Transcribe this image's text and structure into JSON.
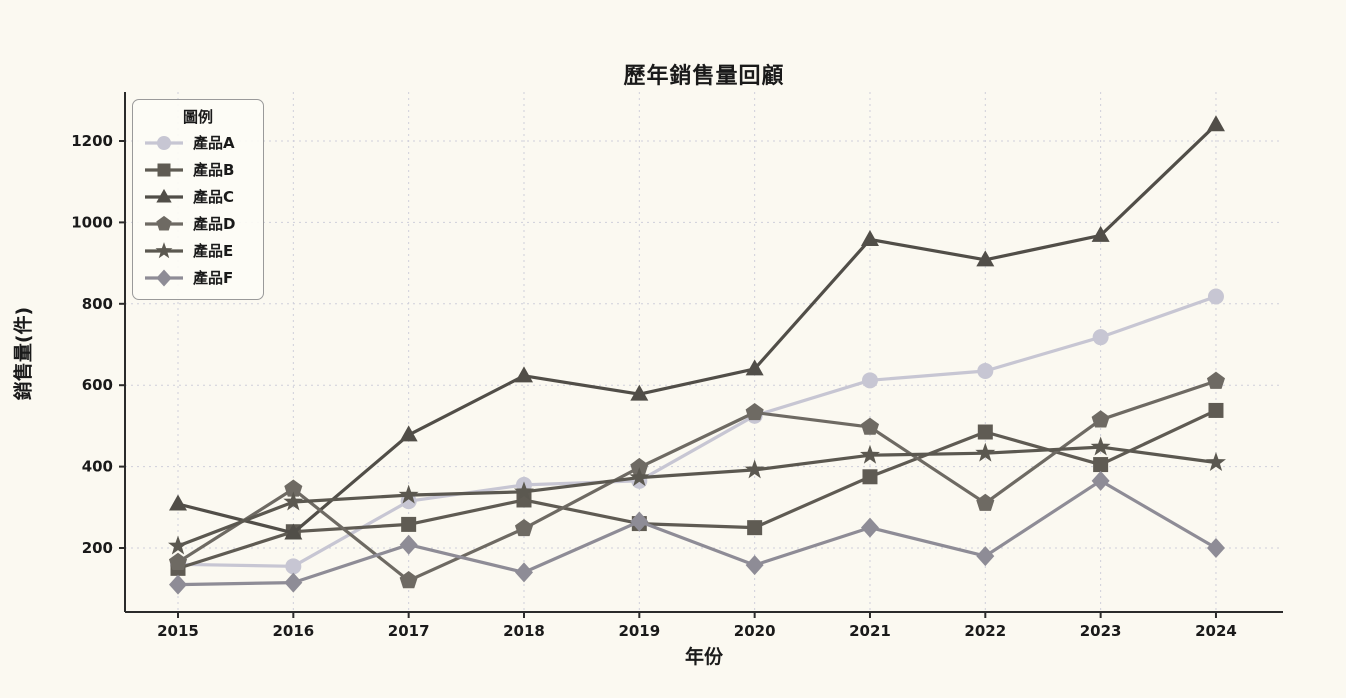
{
  "chart_data": {
    "type": "line",
    "title": "歷年銷售量回顧",
    "xlabel": "年份",
    "ylabel": "銷售量(件)",
    "legend_title": "圖例",
    "legend_position": "upper left",
    "grid": "dotted both axes",
    "background_color": "#fbf9f1",
    "x": [
      2015,
      2016,
      2017,
      2018,
      2019,
      2020,
      2021,
      2022,
      2023,
      2024
    ],
    "yticks": [
      200,
      400,
      600,
      800,
      1000,
      1200
    ],
    "ylim": [
      60,
      1290
    ],
    "series": [
      {
        "name": "產品A",
        "marker": "circle",
        "color": "#c7c6d3",
        "values": [
          160,
          155,
          315,
          355,
          365,
          525,
          612,
          635,
          718,
          818
        ]
      },
      {
        "name": "產品B",
        "marker": "square",
        "color": "#5f5b53",
        "values": [
          150,
          240,
          258,
          318,
          260,
          250,
          375,
          485,
          405,
          538
        ]
      },
      {
        "name": "產品C",
        "marker": "triangle",
        "color": "#514e48",
        "values": [
          308,
          237,
          478,
          623,
          578,
          640,
          958,
          908,
          968,
          1240
        ]
      },
      {
        "name": "產品D",
        "marker": "pentagon",
        "color": "#6e6a63",
        "values": [
          165,
          345,
          120,
          248,
          398,
          533,
          497,
          310,
          515,
          610
        ]
      },
      {
        "name": "產品E",
        "marker": "star",
        "color": "#5b5850",
        "values": [
          205,
          313,
          330,
          338,
          373,
          392,
          428,
          433,
          448,
          410
        ]
      },
      {
        "name": "產品F",
        "marker": "diamond",
        "color": "#8e8c96",
        "values": [
          110,
          115,
          208,
          140,
          265,
          158,
          250,
          180,
          365,
          200
        ]
      }
    ]
  }
}
